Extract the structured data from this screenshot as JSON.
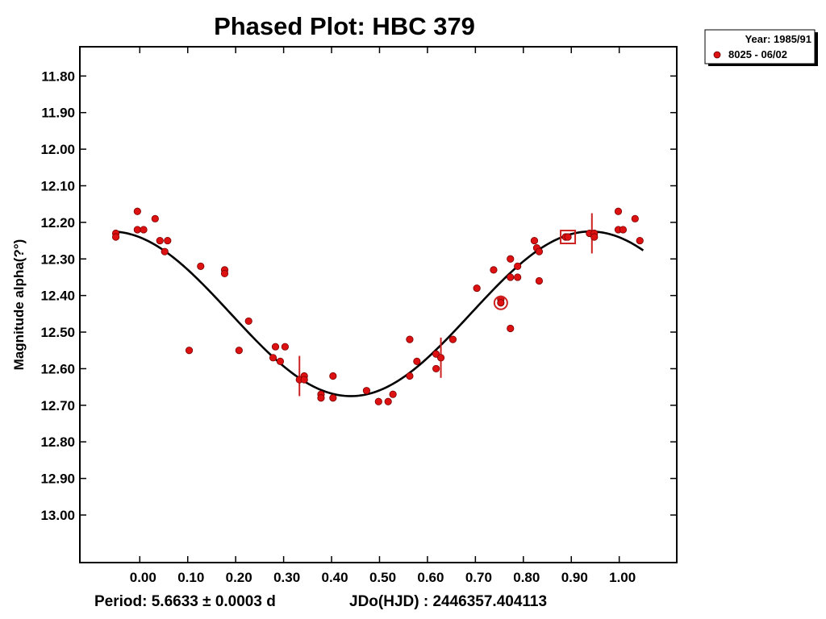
{
  "chart_data": {
    "type": "scatter",
    "title": "Phased Plot: HBC 379",
    "ylabel": "Magnitude alpha(?°)",
    "xlabel": "",
    "x_ticks": [
      "0.00",
      "0.10",
      "0.20",
      "0.30",
      "0.40",
      "0.50",
      "0.60",
      "0.70",
      "0.80",
      "0.90",
      "1.00"
    ],
    "x_tick_values": [
      0,
      0.1,
      0.2,
      0.3,
      0.4,
      0.5,
      0.6,
      0.7,
      0.8,
      0.9,
      1.0
    ],
    "y_ticks": [
      "11.80",
      "11.90",
      "12.00",
      "12.10",
      "12.20",
      "12.30",
      "12.40",
      "12.50",
      "12.60",
      "12.70",
      "12.80",
      "12.90",
      "13.00"
    ],
    "y_tick_values": [
      11.8,
      11.9,
      12.0,
      12.1,
      12.2,
      12.3,
      12.4,
      12.5,
      12.6,
      12.7,
      12.8,
      12.9,
      13.0
    ],
    "xlim": [
      -0.125,
      1.12
    ],
    "ylim": [
      11.72,
      13.13
    ],
    "y_inverted": true,
    "legend": {
      "title": "Year: 1985/91",
      "series_label": "8025 - 06/02",
      "placement": "outside-top-right"
    },
    "footer": {
      "period": "Period: 5.6633 ± 0.0003 d",
      "jdo": "JDo(HJD) : 2446357.404113"
    },
    "colors": {
      "points": "#dd1111",
      "fit": "#000000",
      "markers": "#cc2222"
    },
    "series": [
      {
        "name": "8025 - 06/02",
        "points": [
          [
            -0.05,
            12.23
          ],
          [
            -0.05,
            12.24
          ],
          [
            -0.005,
            12.17
          ],
          [
            -0.005,
            12.22
          ],
          [
            0.008,
            12.22
          ],
          [
            0.032,
            12.19
          ],
          [
            0.042,
            12.25
          ],
          [
            0.052,
            12.28
          ],
          [
            0.058,
            12.25
          ],
          [
            0.103,
            12.55
          ],
          [
            0.127,
            12.32
          ],
          [
            0.177,
            12.33
          ],
          [
            0.177,
            12.34
          ],
          [
            0.207,
            12.55
          ],
          [
            0.227,
            12.47
          ],
          [
            0.278,
            12.57
          ],
          [
            0.283,
            12.54
          ],
          [
            0.293,
            12.58
          ],
          [
            0.303,
            12.54
          ],
          [
            0.333,
            12.63
          ],
          [
            0.343,
            12.62
          ],
          [
            0.343,
            12.63
          ],
          [
            0.378,
            12.67
          ],
          [
            0.378,
            12.68
          ],
          [
            0.403,
            12.62
          ],
          [
            0.403,
            12.68
          ],
          [
            0.473,
            12.66
          ],
          [
            0.498,
            12.69
          ],
          [
            0.518,
            12.69
          ],
          [
            0.528,
            12.67
          ],
          [
            0.563,
            12.52
          ],
          [
            0.563,
            12.62
          ],
          [
            0.578,
            12.58
          ],
          [
            0.618,
            12.56
          ],
          [
            0.618,
            12.6
          ],
          [
            0.628,
            12.57
          ],
          [
            0.653,
            12.52
          ],
          [
            0.703,
            12.38
          ],
          [
            0.738,
            12.33
          ],
          [
            0.753,
            12.41
          ],
          [
            0.753,
            12.42
          ],
          [
            0.773,
            12.3
          ],
          [
            0.773,
            12.35
          ],
          [
            0.773,
            12.49
          ],
          [
            0.788,
            12.32
          ],
          [
            0.788,
            12.35
          ],
          [
            0.823,
            12.25
          ],
          [
            0.828,
            12.27
          ],
          [
            0.833,
            12.28
          ],
          [
            0.833,
            12.36
          ],
          [
            0.888,
            12.24
          ],
          [
            0.893,
            12.24
          ],
          [
            0.938,
            12.23
          ],
          [
            0.948,
            12.23
          ],
          [
            0.948,
            12.24
          ],
          [
            0.998,
            12.17
          ],
          [
            0.998,
            12.22
          ],
          [
            1.008,
            12.22
          ],
          [
            1.033,
            12.19
          ],
          [
            1.043,
            12.25
          ]
        ]
      }
    ],
    "fit_curve": {
      "type": "sinusoid",
      "mean": 12.45,
      "amplitude": 0.225,
      "phase_of_min_brightness": 0.44,
      "x_range": [
        -0.055,
        1.05
      ]
    },
    "error_bars": [
      {
        "x": 0.333,
        "y": 12.62,
        "err": 0.055
      },
      {
        "x": 0.628,
        "y": 12.57,
        "err": 0.055
      },
      {
        "x": 0.943,
        "y": 12.23,
        "err": 0.055
      }
    ],
    "special_markers": [
      {
        "shape": "circle",
        "x": 0.753,
        "y": 12.42
      },
      {
        "shape": "square",
        "x": 0.893,
        "y": 12.24
      }
    ]
  }
}
